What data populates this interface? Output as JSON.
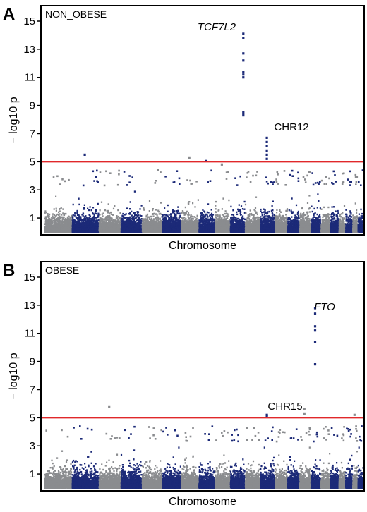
{
  "chart_data": [
    {
      "type": "scatter",
      "panel_label": "A",
      "inset_label": "NON_OBESE",
      "xlabel": "Chromosome",
      "ylabel": "− log10 p",
      "ylim": [
        0,
        16.5
      ],
      "yticks": [
        "1",
        "3",
        "5",
        "7",
        "9",
        "11",
        "13",
        "15"
      ],
      "threshold": 5.0,
      "threshold_color": "#e0282a",
      "colors": [
        "#8a8c8f",
        "#1c2a78"
      ],
      "chromosomes": 22,
      "annotations": [
        {
          "text": "TCF7L2",
          "italic": true,
          "chromosome": 10
        },
        {
          "text": "CHR12",
          "italic": false,
          "chromosome": 12
        }
      ],
      "signals": [
        {
          "chromosome": 10,
          "values": [
            14.1,
            13.8,
            12.7,
            12.2,
            11.4,
            11.2,
            11.0,
            8.5,
            8.3
          ]
        },
        {
          "chromosome": 12,
          "values": [
            6.7,
            6.4,
            6.1,
            5.8,
            5.5,
            5.2
          ]
        },
        {
          "chromosome": 2,
          "values": [
            5.5
          ]
        },
        {
          "chromosome": 7,
          "values": [
            5.3
          ]
        },
        {
          "chromosome": 8,
          "values": [
            5.05
          ]
        },
        {
          "chromosome": 9,
          "values": [
            4.8
          ]
        }
      ]
    },
    {
      "type": "scatter",
      "panel_label": "B",
      "inset_label": "OBESE",
      "xlabel": "Chromosome",
      "ylabel": "− log10 p",
      "ylim": [
        0,
        16.5
      ],
      "yticks": [
        "1",
        "3",
        "5",
        "7",
        "9",
        "11",
        "13",
        "15"
      ],
      "threshold": 5.0,
      "threshold_color": "#e0282a",
      "colors": [
        "#8a8c8f",
        "#1c2a78"
      ],
      "chromosomes": 22,
      "annotations": [
        {
          "text": "FTO",
          "italic": true,
          "chromosome": 16
        },
        {
          "text": "CHR15",
          "italic": false,
          "chromosome": 15
        }
      ],
      "signals": [
        {
          "chromosome": 16,
          "values": [
            12.8,
            12.4,
            11.5,
            11.2,
            10.4,
            8.8
          ]
        },
        {
          "chromosome": 15,
          "values": [
            5.6,
            5.3
          ]
        },
        {
          "chromosome": 12,
          "values": [
            5.2,
            5.1
          ]
        },
        {
          "chromosome": 3,
          "values": [
            5.8
          ]
        },
        {
          "chromosome": 21,
          "values": [
            5.2
          ]
        }
      ]
    }
  ]
}
